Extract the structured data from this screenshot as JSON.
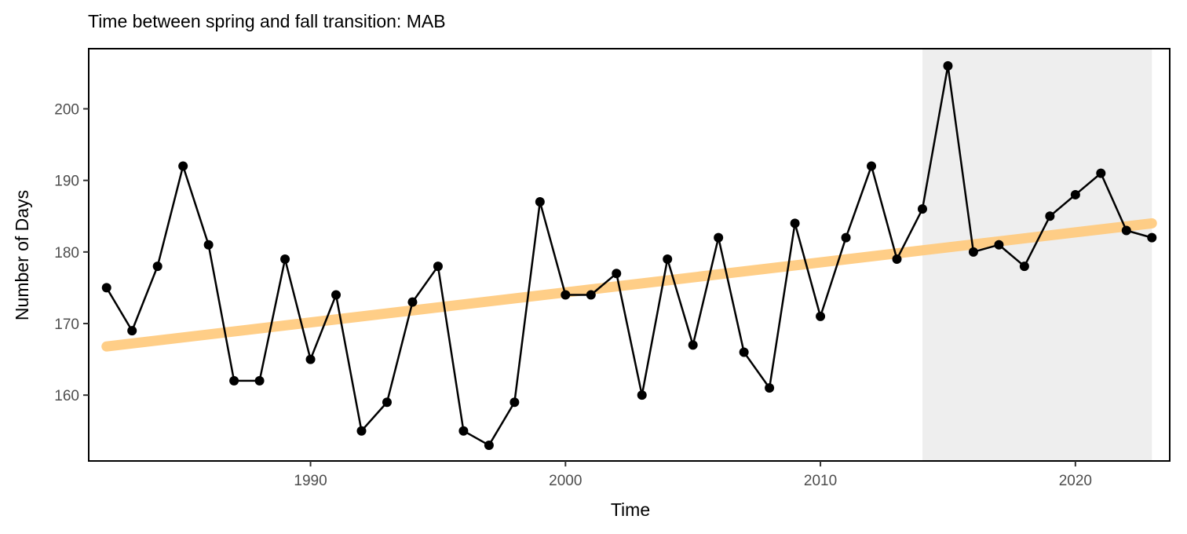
{
  "chart_data": {
    "type": "line",
    "title": "Time between spring and fall transition: MAB",
    "xlabel": "Time",
    "ylabel": "Number of Days",
    "xlim": [
      1981.3,
      2023.7
    ],
    "ylim": [
      150.8,
      208.4
    ],
    "xticks": [
      1990,
      2000,
      2010,
      2020
    ],
    "yticks": [
      160,
      170,
      180,
      190,
      200
    ],
    "grid": false,
    "legend": "none",
    "series": [
      {
        "x": [
          1982,
          1983,
          1984,
          1985,
          1986,
          1987,
          1988,
          1989,
          1990,
          1991,
          1992,
          1993,
          1994,
          1995,
          1996,
          1997,
          1998,
          1999,
          2000,
          2001,
          2002,
          2003,
          2004,
          2005,
          2006,
          2007,
          2008,
          2009,
          2010,
          2011,
          2012,
          2013,
          2014,
          2015,
          2016,
          2017,
          2018,
          2019,
          2020,
          2021,
          2022,
          2023
        ],
        "values": [
          175,
          169,
          178,
          192,
          181,
          162,
          162,
          179,
          165,
          174,
          155,
          159,
          173,
          178,
          155,
          153,
          159,
          187,
          174,
          174,
          177,
          160,
          179,
          167,
          182,
          166,
          161,
          184,
          171,
          182,
          192,
          179,
          186,
          206,
          180,
          181,
          178,
          185,
          188,
          191,
          183,
          182
        ],
        "color": "#000000"
      }
    ],
    "trend": {
      "x": [
        1982,
        2023
      ],
      "values": [
        166.8,
        184.0
      ],
      "color": "#ffc97a"
    },
    "shaded_region": {
      "x": [
        2014,
        2023
      ],
      "color": "#eeeeee"
    }
  }
}
